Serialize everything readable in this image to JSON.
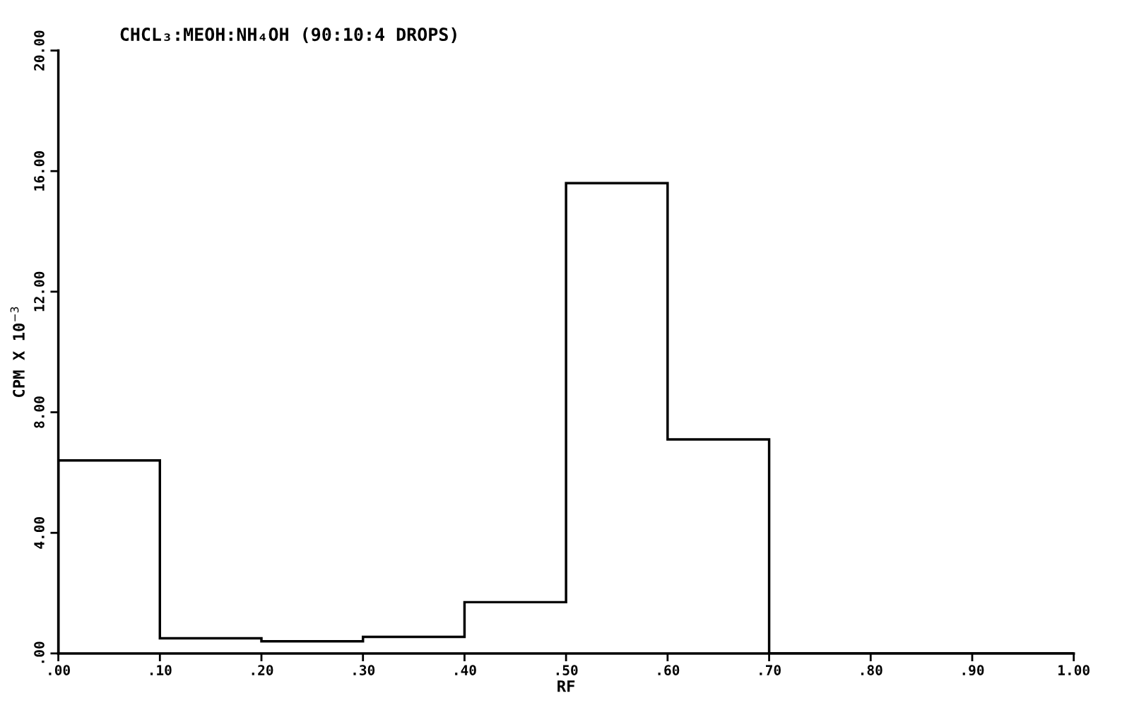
{
  "chart_data": {
    "type": "histogram",
    "title": "CHCL₃:MEOH:NH₄OH (90:10:4 DROPS)",
    "xlabel": "RF",
    "ylabel": "CPM X 10$^{−3}$",
    "bins": [
      0,
      0.1,
      0.2,
      0.3,
      0.4,
      0.5,
      0.6,
      0.7,
      0.8,
      0.9,
      1.0
    ],
    "values": [
      6.4,
      0.5,
      0.4,
      0.55,
      1.7,
      15.6,
      7.1,
      0,
      0,
      0
    ],
    "color": "#000000",
    "xlim": [
      0,
      1
    ],
    "ylim": [
      0,
      20
    ],
    "xticks": [
      {
        "value": 0,
        "label": ".00"
      },
      {
        "value": 0.1,
        "label": ".10"
      },
      {
        "value": 0.2,
        "label": ".20"
      },
      {
        "value": 0.3,
        "label": ".30"
      },
      {
        "value": 0.4,
        "label": ".40"
      },
      {
        "value": 0.5,
        "label": ".50"
      },
      {
        "value": 0.6,
        "label": ".60"
      },
      {
        "value": 0.7,
        "label": ".70"
      },
      {
        "value": 0.8,
        "label": ".80"
      },
      {
        "value": 0.9,
        "label": ".90"
      },
      {
        "value": 1.0,
        "label": "1.00"
      }
    ],
    "yticks": [
      {
        "value": 0,
        "label": ".00"
      },
      {
        "value": 4,
        "label": "4.00"
      },
      {
        "value": 8,
        "label": "8.00"
      },
      {
        "value": 12,
        "label": "12.00"
      },
      {
        "value": 16,
        "label": "16.00"
      },
      {
        "value": 20,
        "label": "20.00"
      }
    ],
    "grid": false,
    "legend": false
  }
}
